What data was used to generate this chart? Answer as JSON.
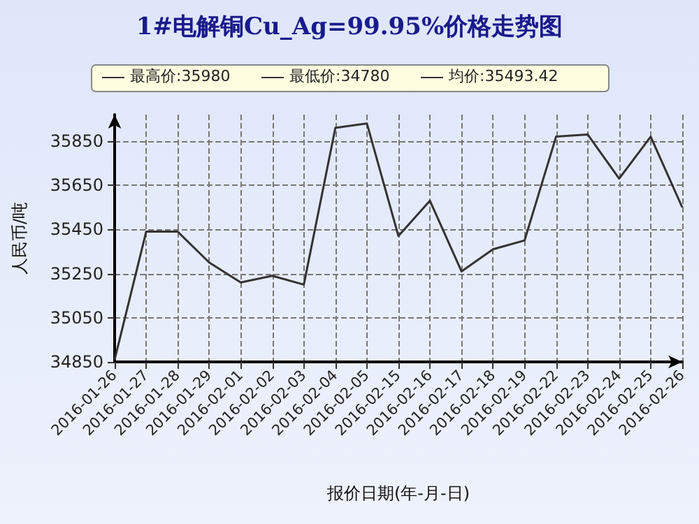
{
  "chart_data": {
    "type": "line",
    "title": "1#电解铜Cu_Ag=99.95%价格走势图",
    "xlabel": "报价日期(年-月-日)",
    "ylabel": "人民币/吨",
    "annotations": [
      "最高价:35980",
      "最低价:34780",
      "均价:35493.42"
    ],
    "categories": [
      "2016-01-26",
      "2016-01-27",
      "2016-01-28",
      "2016-01-29",
      "2016-02-01",
      "2016-02-02",
      "2016-02-03",
      "2016-02-04",
      "2016-02-05",
      "2016-02-15",
      "2016-02-16",
      "2016-02-17",
      "2016-02-18",
      "2016-02-19",
      "2016-02-22",
      "2016-02-23",
      "2016-02-24",
      "2016-02-25",
      "2016-02-26"
    ],
    "series": [
      {
        "color": "#333333",
        "values": [
          34860,
          35440,
          35440,
          35300,
          35210,
          35240,
          35200,
          35910,
          35930,
          35420,
          35580,
          35260,
          35360,
          35400,
          35870,
          35880,
          35680,
          35870,
          35550
        ]
      }
    ],
    "ylim": [
      34850,
      35970
    ],
    "yticks": [
      34850,
      35050,
      35250,
      35450,
      35650,
      35850
    ],
    "grid": true,
    "marker": "none",
    "line_style": "solid"
  }
}
